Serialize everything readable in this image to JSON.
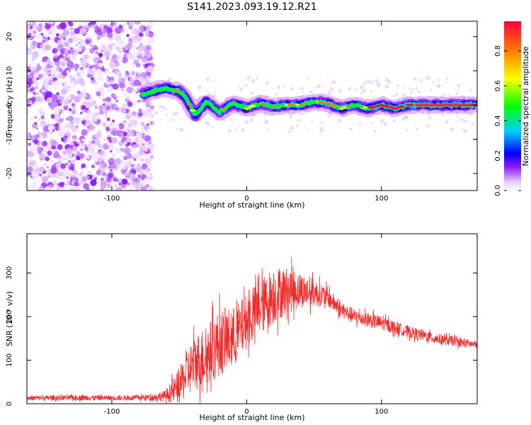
{
  "figure_title": "S141.2023.093.19.12.R21",
  "chart_data": [
    {
      "type": "heatmap",
      "title": "",
      "xlabel": "Height of straight line (km)",
      "ylabel": "Frequency (Hz)",
      "xlim": [
        -163,
        171
      ],
      "ylim": [
        -25,
        24.5
      ],
      "x_ticks": [
        -100,
        0,
        100
      ],
      "y_ticks": [
        -20,
        -10,
        0,
        10,
        20
      ],
      "grid": false,
      "colorbar": {
        "label": "Normalized spectral amplitude",
        "ticks": [
          0.0,
          0.2,
          0.4,
          0.6,
          0.8
        ],
        "range": [
          0,
          0.97
        ],
        "colormap": [
          "#ffffff",
          "#e6ccff",
          "#8c1aff",
          "#0000ff",
          "#00d0ff",
          "#00ff00",
          "#ffff00",
          "#ff8000",
          "#ff0040"
        ]
      },
      "ridge": {
        "description": "dominant frequency track",
        "x": [
          -78,
          -70,
          -60,
          -50,
          -45,
          -38,
          -30,
          -20,
          -10,
          0,
          10,
          20,
          30,
          40,
          50,
          60,
          70,
          80,
          90,
          100,
          110,
          120,
          130,
          150,
          170
        ],
        "y": [
          3,
          4,
          5,
          4,
          2,
          -3,
          1,
          -2,
          0.5,
          -1,
          0.5,
          -0.5,
          0,
          0,
          1,
          0.5,
          -1,
          0,
          -1,
          0,
          -1,
          0,
          0,
          0,
          0
        ]
      }
    },
    {
      "type": "line",
      "title": "",
      "xlabel": "Height of straight line (km)",
      "ylabel": "SNR (10 * v/v)",
      "xlim": [
        -163,
        171
      ],
      "ylim": [
        0,
        390
      ],
      "x_ticks": [
        -100,
        0,
        100
      ],
      "y_ticks": [
        0,
        100,
        200,
        300
      ],
      "grid": false,
      "color": "#ee2c2c",
      "envelope": {
        "x": [
          -163,
          -120,
          -90,
          -70,
          -60,
          -50,
          -40,
          -30,
          -20,
          -10,
          0,
          10,
          20,
          30,
          40,
          50,
          60,
          70,
          80,
          100,
          120,
          140,
          160,
          171
        ],
        "mean": [
          13,
          14,
          13,
          15,
          18,
          40,
          90,
          110,
          140,
          150,
          190,
          220,
          250,
          260,
          260,
          255,
          245,
          215,
          200,
          185,
          165,
          150,
          140,
          135
        ],
        "spread": [
          6,
          7,
          6,
          8,
          15,
          45,
          70,
          80,
          85,
          80,
          70,
          70,
          75,
          60,
          45,
          35,
          25,
          20,
          20,
          18,
          15,
          14,
          12,
          10
        ]
      }
    }
  ]
}
